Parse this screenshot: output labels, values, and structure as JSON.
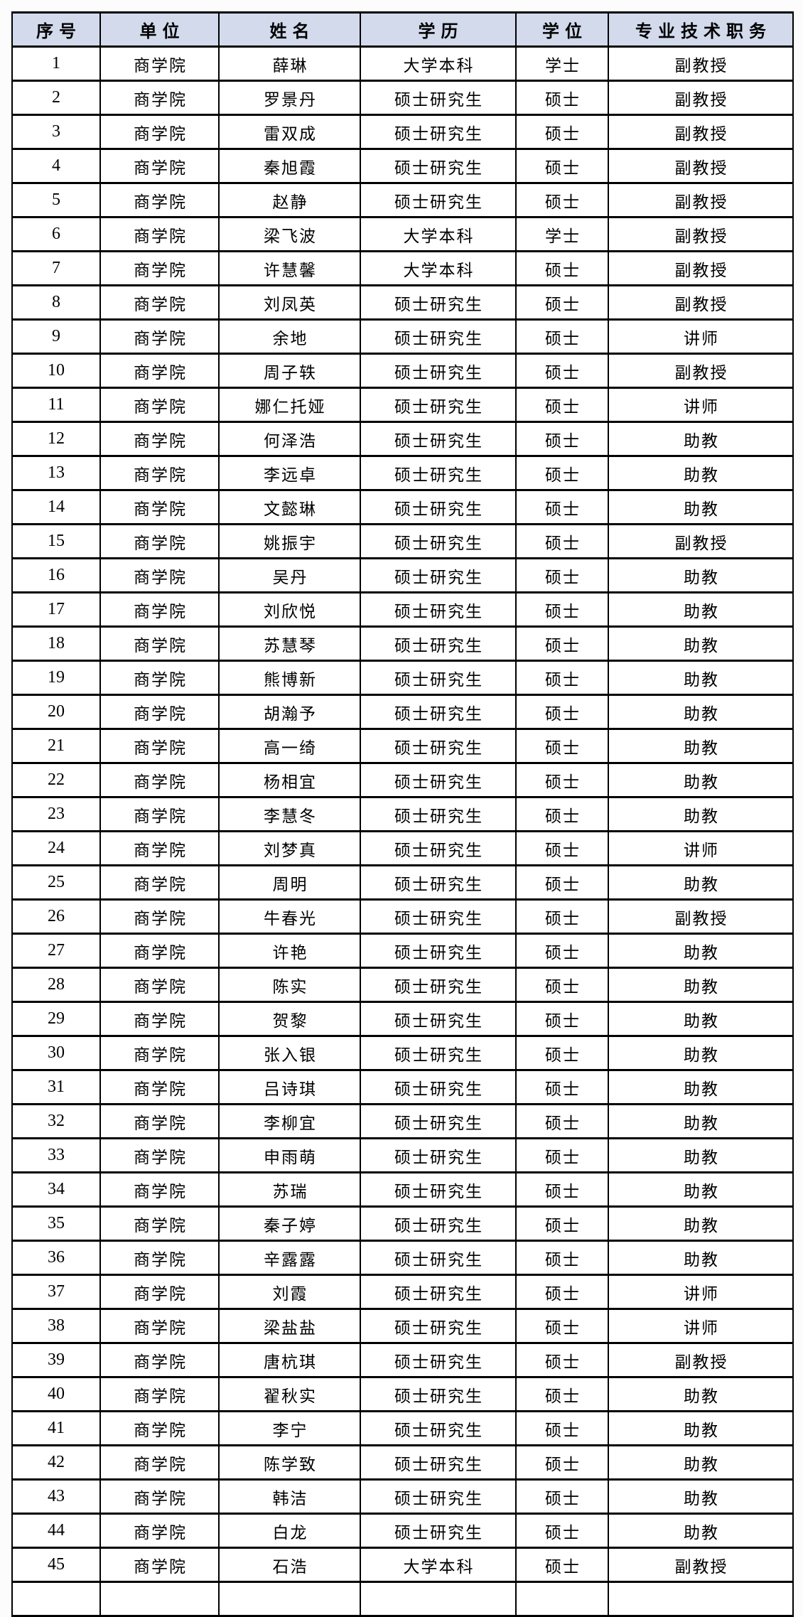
{
  "table": {
    "title_semantic": "faculty-roster-table",
    "header_bg": "#d2daec",
    "border_color": "#000000",
    "columns": [
      "序号",
      "单位",
      "姓名",
      "学历",
      "学位",
      "专业技术职务"
    ],
    "rows": [
      [
        "1",
        "商学院",
        "薛琳",
        "大学本科",
        "学士",
        "副教授"
      ],
      [
        "2",
        "商学院",
        "罗景丹",
        "硕士研究生",
        "硕士",
        "副教授"
      ],
      [
        "3",
        "商学院",
        "雷双成",
        "硕士研究生",
        "硕士",
        "副教授"
      ],
      [
        "4",
        "商学院",
        "秦旭霞",
        "硕士研究生",
        "硕士",
        "副教授"
      ],
      [
        "5",
        "商学院",
        "赵静",
        "硕士研究生",
        "硕士",
        "副教授"
      ],
      [
        "6",
        "商学院",
        "梁飞波",
        "大学本科",
        "学士",
        "副教授"
      ],
      [
        "7",
        "商学院",
        "许慧馨",
        "大学本科",
        "硕士",
        "副教授"
      ],
      [
        "8",
        "商学院",
        "刘凤英",
        "硕士研究生",
        "硕士",
        "副教授"
      ],
      [
        "9",
        "商学院",
        "余地",
        "硕士研究生",
        "硕士",
        "讲师"
      ],
      [
        "10",
        "商学院",
        "周子轶",
        "硕士研究生",
        "硕士",
        "副教授"
      ],
      [
        "11",
        "商学院",
        "娜仁托娅",
        "硕士研究生",
        "硕士",
        "讲师"
      ],
      [
        "12",
        "商学院",
        "何泽浩",
        "硕士研究生",
        "硕士",
        "助教"
      ],
      [
        "13",
        "商学院",
        "李远卓",
        "硕士研究生",
        "硕士",
        "助教"
      ],
      [
        "14",
        "商学院",
        "文懿琳",
        "硕士研究生",
        "硕士",
        "助教"
      ],
      [
        "15",
        "商学院",
        "姚振宇",
        "硕士研究生",
        "硕士",
        "副教授"
      ],
      [
        "16",
        "商学院",
        "吴丹",
        "硕士研究生",
        "硕士",
        "助教"
      ],
      [
        "17",
        "商学院",
        "刘欣悦",
        "硕士研究生",
        "硕士",
        "助教"
      ],
      [
        "18",
        "商学院",
        "苏慧琴",
        "硕士研究生",
        "硕士",
        "助教"
      ],
      [
        "19",
        "商学院",
        "熊博新",
        "硕士研究生",
        "硕士",
        "助教"
      ],
      [
        "20",
        "商学院",
        "胡瀚予",
        "硕士研究生",
        "硕士",
        "助教"
      ],
      [
        "21",
        "商学院",
        "高一绮",
        "硕士研究生",
        "硕士",
        "助教"
      ],
      [
        "22",
        "商学院",
        "杨相宜",
        "硕士研究生",
        "硕士",
        "助教"
      ],
      [
        "23",
        "商学院",
        "李慧冬",
        "硕士研究生",
        "硕士",
        "助教"
      ],
      [
        "24",
        "商学院",
        "刘梦真",
        "硕士研究生",
        "硕士",
        "讲师"
      ],
      [
        "25",
        "商学院",
        "周明",
        "硕士研究生",
        "硕士",
        "助教"
      ],
      [
        "26",
        "商学院",
        "牛春光",
        "硕士研究生",
        "硕士",
        "副教授"
      ],
      [
        "27",
        "商学院",
        "许艳",
        "硕士研究生",
        "硕士",
        "助教"
      ],
      [
        "28",
        "商学院",
        "陈实",
        "硕士研究生",
        "硕士",
        "助教"
      ],
      [
        "29",
        "商学院",
        "贺黎",
        "硕士研究生",
        "硕士",
        "助教"
      ],
      [
        "30",
        "商学院",
        "张入银",
        "硕士研究生",
        "硕士",
        "助教"
      ],
      [
        "31",
        "商学院",
        "吕诗琪",
        "硕士研究生",
        "硕士",
        "助教"
      ],
      [
        "32",
        "商学院",
        "李柳宜",
        "硕士研究生",
        "硕士",
        "助教"
      ],
      [
        "33",
        "商学院",
        "申雨萌",
        "硕士研究生",
        "硕士",
        "助教"
      ],
      [
        "34",
        "商学院",
        "苏瑞",
        "硕士研究生",
        "硕士",
        "助教"
      ],
      [
        "35",
        "商学院",
        "秦子婷",
        "硕士研究生",
        "硕士",
        "助教"
      ],
      [
        "36",
        "商学院",
        "辛露露",
        "硕士研究生",
        "硕士",
        "助教"
      ],
      [
        "37",
        "商学院",
        "刘霞",
        "硕士研究生",
        "硕士",
        "讲师"
      ],
      [
        "38",
        "商学院",
        "梁盐盐",
        "硕士研究生",
        "硕士",
        "讲师"
      ],
      [
        "39",
        "商学院",
        "唐杭琪",
        "硕士研究生",
        "硕士",
        "副教授"
      ],
      [
        "40",
        "商学院",
        "翟秋实",
        "硕士研究生",
        "硕士",
        "助教"
      ],
      [
        "41",
        "商学院",
        "李宁",
        "硕士研究生",
        "硕士",
        "助教"
      ],
      [
        "42",
        "商学院",
        "陈学致",
        "硕士研究生",
        "硕士",
        "助教"
      ],
      [
        "43",
        "商学院",
        "韩洁",
        "硕士研究生",
        "硕士",
        "助教"
      ],
      [
        "44",
        "商学院",
        "白龙",
        "硕士研究生",
        "硕士",
        "助教"
      ],
      [
        "45",
        "商学院",
        "石浩",
        "大学本科",
        "硕士",
        "副教授"
      ]
    ]
  }
}
